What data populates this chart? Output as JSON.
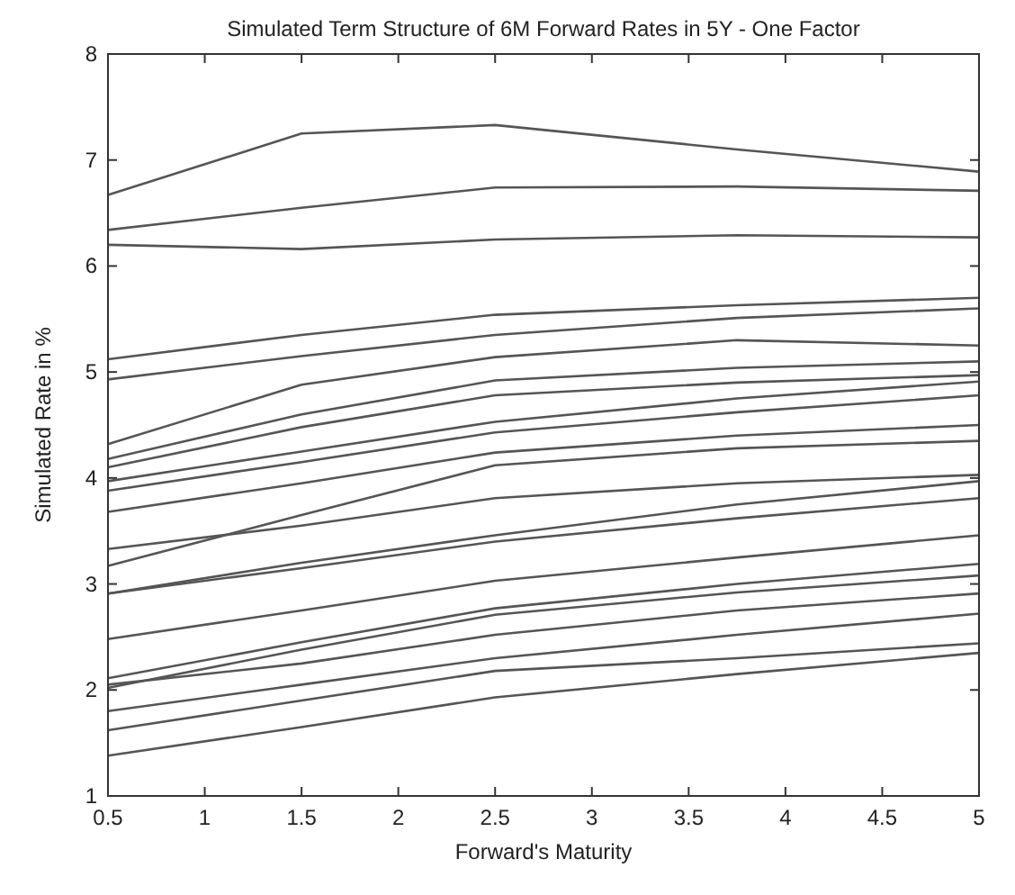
{
  "chart_data": {
    "type": "line",
    "title": "Simulated Term Structure of 6M Forward Rates in 5Y - One Factor",
    "xlabel": "Forward's Maturity",
    "ylabel": "Simulated Rate in %",
    "x": [
      0.5,
      1.5,
      2.5,
      3.75,
      5
    ],
    "xlim": [
      0.5,
      5
    ],
    "xticks": [
      0.5,
      1,
      1.5,
      2,
      2.5,
      3,
      3.5,
      4,
      4.5,
      5
    ],
    "ylim": [
      1,
      8
    ],
    "yticks": [
      1,
      2,
      3,
      4,
      5,
      6,
      7,
      8
    ],
    "grid": false,
    "line_style": "solid",
    "series": [
      {
        "color": "#555555",
        "values": [
          6.67,
          7.25,
          7.33,
          7.1,
          6.89
        ]
      },
      {
        "color": "#555555",
        "values": [
          6.34,
          6.55,
          6.74,
          6.75,
          6.71
        ]
      },
      {
        "color": "#555555",
        "values": [
          6.2,
          6.16,
          6.25,
          6.29,
          6.27
        ]
      },
      {
        "color": "#555555",
        "values": [
          5.12,
          5.35,
          5.54,
          5.63,
          5.7
        ]
      },
      {
        "color": "#555555",
        "values": [
          4.93,
          5.15,
          5.35,
          5.51,
          5.6
        ]
      },
      {
        "color": "#555555",
        "values": [
          4.32,
          4.88,
          5.14,
          5.3,
          5.25
        ]
      },
      {
        "color": "#555555",
        "values": [
          4.18,
          4.6,
          4.92,
          5.04,
          5.1
        ]
      },
      {
        "color": "#555555",
        "values": [
          4.1,
          4.48,
          4.78,
          4.9,
          4.97
        ]
      },
      {
        "color": "#555555",
        "values": [
          3.97,
          4.25,
          4.53,
          4.75,
          4.91
        ]
      },
      {
        "color": "#555555",
        "values": [
          3.88,
          4.15,
          4.43,
          4.62,
          4.78
        ]
      },
      {
        "color": "#555555",
        "values": [
          3.68,
          3.95,
          4.24,
          4.4,
          4.5
        ]
      },
      {
        "color": "#555555",
        "values": [
          3.17,
          3.65,
          4.12,
          4.28,
          4.35
        ]
      },
      {
        "color": "#555555",
        "values": [
          3.33,
          3.55,
          3.81,
          3.95,
          4.03
        ]
      },
      {
        "color": "#555555",
        "values": [
          2.91,
          3.2,
          3.46,
          3.75,
          3.97
        ]
      },
      {
        "color": "#555555",
        "values": [
          2.91,
          3.15,
          3.4,
          3.62,
          3.81
        ]
      },
      {
        "color": "#555555",
        "values": [
          2.48,
          2.75,
          3.03,
          3.25,
          3.46
        ]
      },
      {
        "color": "#555555",
        "values": [
          2.11,
          2.45,
          2.77,
          3.0,
          3.19
        ]
      },
      {
        "color": "#555555",
        "values": [
          2.02,
          2.38,
          2.71,
          2.92,
          3.08
        ]
      },
      {
        "color": "#555555",
        "values": [
          2.05,
          2.25,
          2.52,
          2.75,
          2.91
        ]
      },
      {
        "color": "#555555",
        "values": [
          1.8,
          2.05,
          2.3,
          2.52,
          2.72
        ]
      },
      {
        "color": "#555555",
        "values": [
          1.62,
          1.9,
          2.18,
          2.3,
          2.44
        ]
      },
      {
        "color": "#555555",
        "values": [
          1.38,
          1.65,
          1.93,
          2.15,
          2.35
        ]
      }
    ]
  }
}
